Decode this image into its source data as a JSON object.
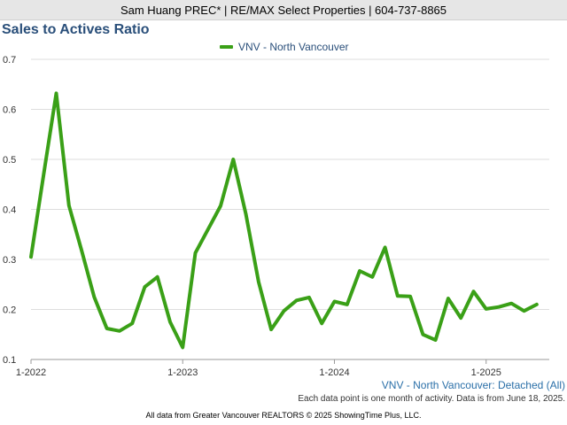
{
  "header": {
    "agent_line": "Sam Huang PREC* | RE/MAX Select Properties | 604-737-8865"
  },
  "title": "Sales to Actives Ratio",
  "footer": {
    "series_caption": "VNV - North Vancouver: Detached (All)",
    "note": "Each data point is one month of activity. Data is from June 18, 2025.",
    "credit": "All data from Greater Vancouver REALTORS © 2025 ShowingTime Plus, LLC."
  },
  "colors": {
    "series": "#3aa017",
    "title": "#2a4f7a",
    "grid": "#dddddd",
    "axis": "#999999"
  },
  "chart_data": {
    "type": "line",
    "title": "Sales to Actives Ratio",
    "xlabel": "",
    "ylabel": "",
    "ylim": [
      0.1,
      0.7
    ],
    "yticks": [
      0.1,
      0.2,
      0.3,
      0.4,
      0.5,
      0.6,
      0.7
    ],
    "ytick_labels": [
      "0.1",
      "0.2",
      "0.3",
      "0.4",
      "0.5",
      "0.6",
      "0.7"
    ],
    "xticks": [
      "2022-01",
      "2023-01",
      "2024-01",
      "2025-01"
    ],
    "xtick_labels": [
      "1-2022",
      "1-2023",
      "1-2024",
      "1-2025"
    ],
    "grid": true,
    "legend": "top-center",
    "series": [
      {
        "name": "VNV - North Vancouver",
        "x": [
          "2022-01",
          "2022-02",
          "2022-03",
          "2022-04",
          "2022-05",
          "2022-06",
          "2022-07",
          "2022-08",
          "2022-09",
          "2022-10",
          "2022-11",
          "2022-12",
          "2023-01",
          "2023-02",
          "2023-03",
          "2023-04",
          "2023-05",
          "2023-06",
          "2023-07",
          "2023-08",
          "2023-09",
          "2023-10",
          "2023-11",
          "2023-12",
          "2024-01",
          "2024-02",
          "2024-03",
          "2024-04",
          "2024-05",
          "2024-06",
          "2024-07",
          "2024-08",
          "2024-09",
          "2024-10",
          "2024-11",
          "2024-12",
          "2025-01",
          "2025-02",
          "2025-03",
          "2025-04",
          "2025-05"
        ],
        "values": [
          0.305,
          0.47,
          0.632,
          0.408,
          0.318,
          0.225,
          0.162,
          0.157,
          0.172,
          0.245,
          0.265,
          0.175,
          0.124,
          0.313,
          0.36,
          0.407,
          0.5,
          0.39,
          0.255,
          0.16,
          0.197,
          0.218,
          0.224,
          0.172,
          0.216,
          0.21,
          0.277,
          0.265,
          0.324,
          0.227,
          0.226,
          0.15,
          0.139,
          0.222,
          0.183,
          0.236,
          0.201,
          0.205,
          0.212,
          0.197,
          0.21
        ]
      }
    ]
  }
}
